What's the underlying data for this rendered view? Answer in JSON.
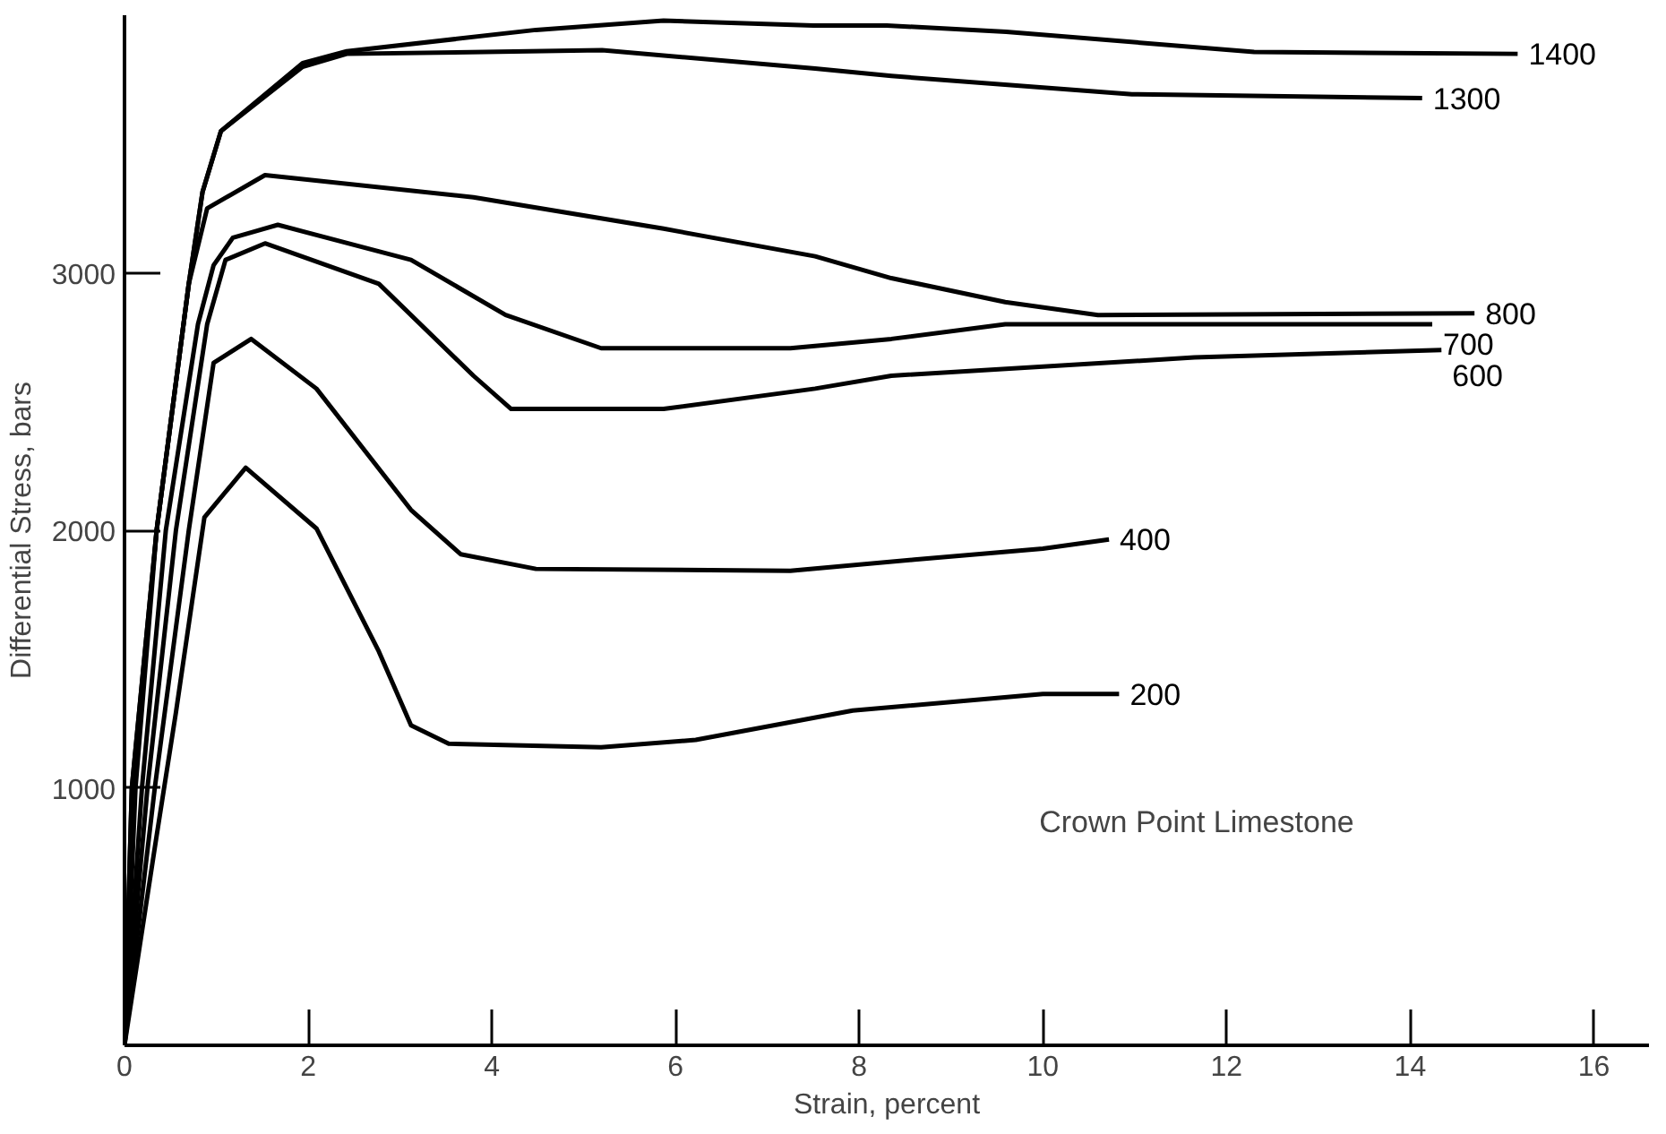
{
  "chart_data": {
    "type": "line",
    "xlabel": "Strain, percent",
    "ylabel": "Differential Stress, bars",
    "xlim": [
      0,
      16.6
    ],
    "ylim": [
      0,
      4000
    ],
    "xticks": [
      0,
      2,
      4,
      6,
      8,
      10,
      12,
      14,
      16
    ],
    "yticks": [
      1000,
      2000,
      3000
    ],
    "grid": false,
    "legend": false,
    "marker": "none",
    "line_style": "solid",
    "annotations": [
      "Crown Point Limestone"
    ],
    "series": [
      {
        "name": "1400",
        "color": "#000000",
        "x": [
          0,
          0.08,
          0.35,
          0.7,
          0.85,
          1.05,
          1.94,
          2.42,
          4.48,
          5.87,
          7.5,
          8.3,
          9.6,
          12.3,
          15.17
        ],
        "values": [
          0,
          1000,
          2000,
          2957,
          3314,
          3550,
          3814,
          3860,
          3943,
          3979,
          3960,
          3960,
          3936,
          3857,
          3850
        ]
      },
      {
        "name": "1300",
        "color": "#000000",
        "x": [
          0,
          0.08,
          0.35,
          0.7,
          0.85,
          1.05,
          1.94,
          2.42,
          5.2,
          7.52,
          8.35,
          10.97,
          14.13
        ],
        "values": [
          0,
          1000,
          2000,
          2957,
          3314,
          3550,
          3800,
          3850,
          3864,
          3793,
          3764,
          3693,
          3678
        ]
      },
      {
        "name": "800",
        "color": "#000000",
        "x": [
          0,
          0.12,
          0.35,
          0.7,
          0.9,
          1.53,
          3.8,
          5.87,
          7.52,
          8.35,
          9.59,
          10.6,
          14.7
        ],
        "values": [
          0,
          1000,
          2000,
          2957,
          3250,
          3379,
          3293,
          3171,
          3064,
          2979,
          2886,
          2836,
          2843
        ]
      },
      {
        "name": "700",
        "color": "#000000",
        "x": [
          0,
          0.19,
          0.45,
          0.8,
          0.97,
          1.18,
          1.67,
          3.12,
          4.15,
          5.19,
          7.25,
          8.35,
          9.59,
          14.24
        ],
        "values": [
          0,
          1000,
          2000,
          2800,
          3029,
          3136,
          3186,
          3050,
          2836,
          2707,
          2707,
          2743,
          2800,
          2800
        ]
      },
      {
        "name": "600",
        "color": "#000000",
        "x": [
          0,
          0.25,
          0.56,
          0.9,
          1.1,
          1.53,
          2.77,
          3.8,
          4.21,
          5.87,
          7.52,
          8.35,
          11.65,
          14.34
        ],
        "values": [
          0,
          1000,
          2000,
          2800,
          3050,
          3114,
          2957,
          2600,
          2471,
          2471,
          2550,
          2600,
          2671,
          2700
        ]
      },
      {
        "name": "400",
        "color": "#000000",
        "x": [
          0,
          0.33,
          0.7,
          0.97,
          1.38,
          2.09,
          3.12,
          3.66,
          4.48,
          7.25,
          8.6,
          10.0,
          10.72
        ],
        "values": [
          0,
          1000,
          2000,
          2650,
          2743,
          2550,
          2079,
          1907,
          1850,
          1843,
          1886,
          1929,
          1964
        ]
      },
      {
        "name": "200",
        "color": "#000000",
        "x": [
          0,
          0.35,
          0.56,
          0.87,
          1.32,
          2.09,
          2.77,
          3.12,
          3.53,
          5.19,
          6.22,
          7.93,
          10.0,
          10.83
        ],
        "values": [
          0,
          814,
          1293,
          2050,
          2243,
          2007,
          1529,
          1243,
          1171,
          1157,
          1186,
          1300,
          1364,
          1364
        ]
      }
    ]
  }
}
